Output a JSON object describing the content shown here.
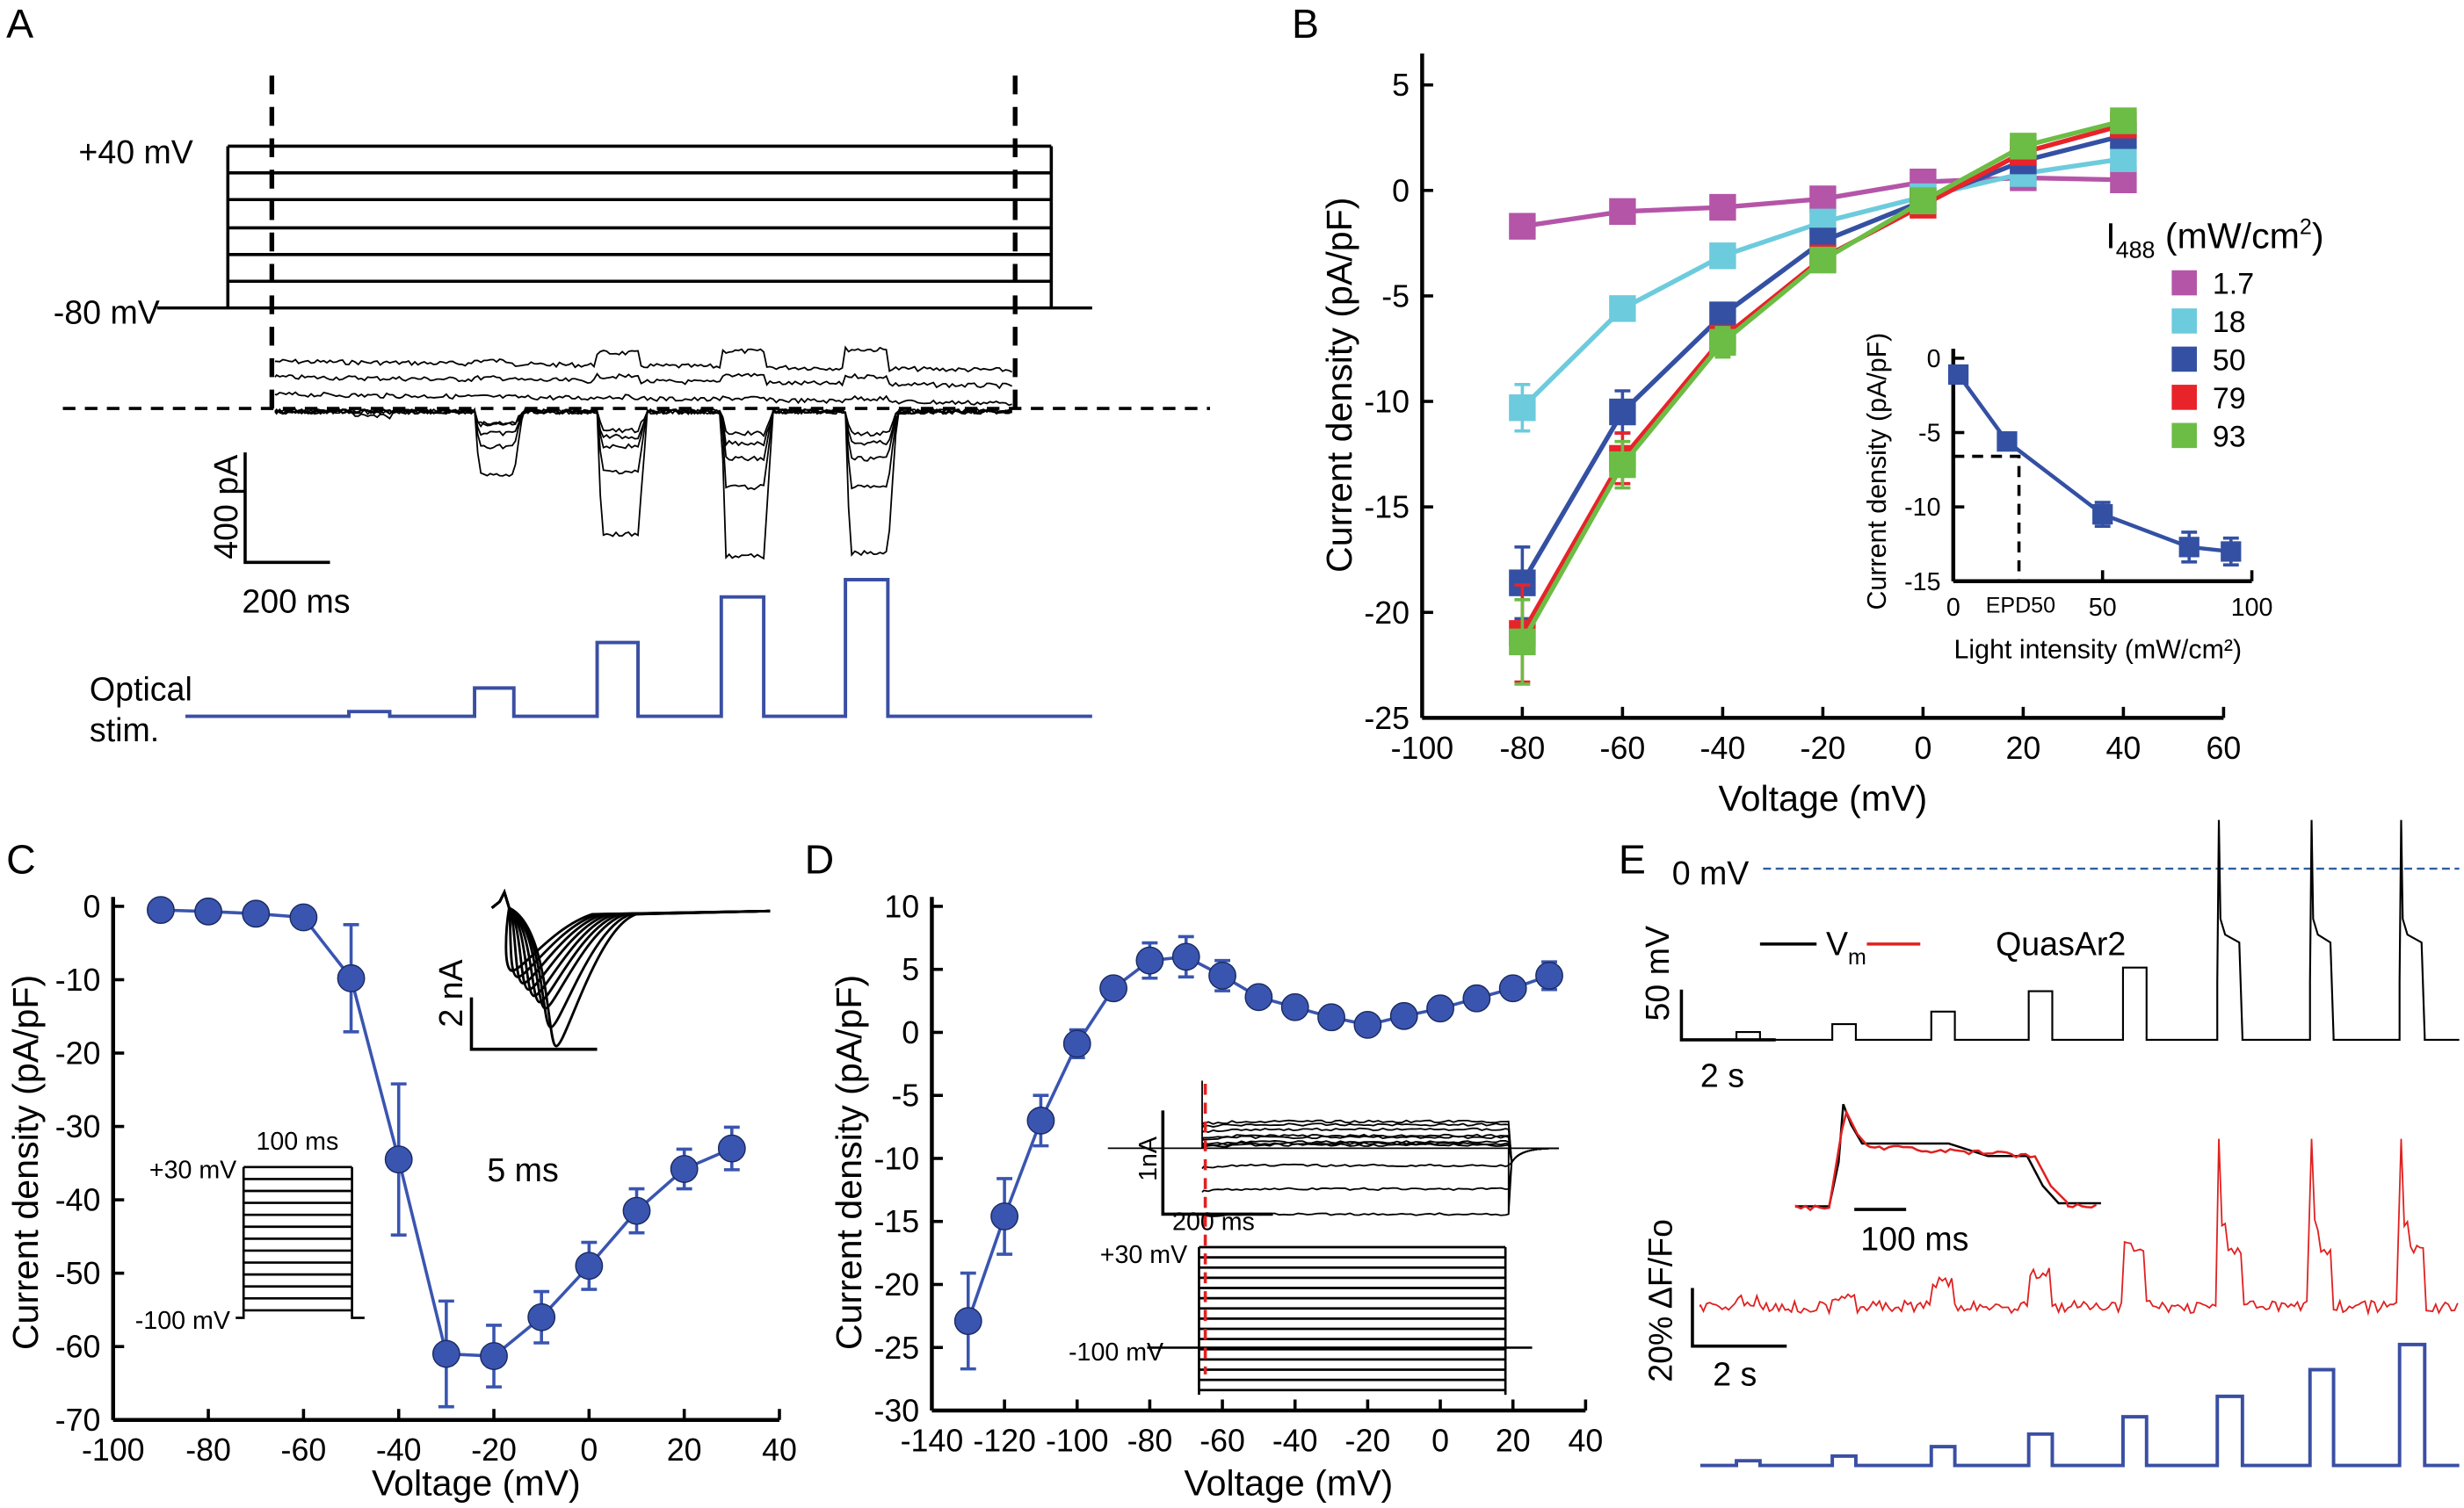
{
  "panel_letters": [
    "A",
    "B",
    "C",
    "D",
    "E"
  ],
  "panel_a": {
    "v_top_label": "+40 mV",
    "v_bottom_label": "-80 mV",
    "scale_y_label": "400 pA",
    "scale_x_label": "200 ms",
    "stim_label_1": "Optical",
    "stim_label_2": "stim.",
    "stim_color": "#3a4fa3"
  },
  "panel_b_legend": {
    "title_main": "I",
    "title_sub": "488",
    "title_rest": " (mW/cm",
    "title_sup": "2",
    "title_end": ")"
  },
  "panel_c_inset": {
    "scale_y_label": "2 nA",
    "scale_x_label": "5 ms",
    "protocol_top": "+30 mV",
    "protocol_bottom": "-100 mV",
    "protocol_duration": "100  ms"
  },
  "panel_d_inset": {
    "scale_y_label": "1nA",
    "scale_x_label": "200 ms",
    "protocol_top": "+30 mV",
    "protocol_bottom": "-100 mV",
    "marker_color": "#e02020"
  },
  "panel_e": {
    "zero_label": "0 mV",
    "legend_vm_main": "V",
    "legend_vm_sub": "m",
    "legend_quasar": "QuasAr2",
    "vm_scale_y": "50 mV",
    "vm_scale_x": "2 s",
    "inset_scale_x": "100 ms",
    "fl_scale_y": "20% ΔF/Fo",
    "fl_scale_x": "2 s",
    "vm_color": "#000000",
    "quasar_color": "#e02020",
    "stim_color": "#3a4fa3",
    "zero_line_color": "#2f5fa0"
  },
  "chart_data": [
    {
      "id": "B",
      "type": "line",
      "xlabel": "Voltage (mV)",
      "ylabel": "Current density (pA/pF)",
      "xlim": [
        -100,
        60
      ],
      "ylim": [
        -25,
        5
      ],
      "xticks": [
        -100,
        -80,
        -60,
        -40,
        -20,
        0,
        20,
        40,
        60
      ],
      "yticks": [
        -25,
        -20,
        -15,
        -10,
        -5,
        0,
        5
      ],
      "grid": false,
      "legend": "right",
      "marker": "square",
      "x": [
        -80,
        -60,
        -40,
        -20,
        0,
        20,
        40
      ],
      "series": [
        {
          "name": "1.7",
          "color": "#b455a8",
          "values": [
            -1.7,
            -1.0,
            -0.8,
            -0.4,
            0.4,
            0.6,
            0.5
          ],
          "errors": [
            0.2,
            0.2,
            0.2,
            0.2,
            0.2,
            0.2,
            0.2
          ]
        },
        {
          "name": "18",
          "color": "#6ccbdc",
          "values": [
            -10.3,
            -5.6,
            -3.1,
            -1.5,
            -0.3,
            0.8,
            1.5
          ],
          "errors": [
            1.1,
            0.3,
            0.3,
            0.3,
            0.2,
            0.2,
            0.3
          ]
        },
        {
          "name": "50",
          "color": "#3450a3",
          "values": [
            -18.6,
            -10.5,
            -5.9,
            -2.4,
            -0.5,
            1.4,
            2.6
          ],
          "errors": [
            1.7,
            1.0,
            0.5,
            0.3,
            0.2,
            0.3,
            0.3
          ]
        },
        {
          "name": "79",
          "color": "#e8232a",
          "values": [
            -21.0,
            -12.7,
            -7.0,
            -3.2,
            -0.7,
            1.8,
            3.1
          ],
          "errors": [
            2.3,
            1.2,
            0.5,
            0.3,
            0.3,
            0.3,
            0.3
          ]
        },
        {
          "name": "93",
          "color": "#6bbd45",
          "values": [
            -21.4,
            -13.0,
            -7.2,
            -3.3,
            -0.5,
            2.1,
            3.3
          ],
          "errors": [
            2.0,
            1.1,
            0.7,
            0.3,
            0.3,
            0.3,
            0.3
          ]
        }
      ]
    },
    {
      "id": "B-inset",
      "type": "line",
      "xlabel": "Light intensity (mW/cm²)",
      "ylabel": "Current density (pA/pF)",
      "xlim": [
        0,
        100
      ],
      "ylim": [
        -15,
        0
      ],
      "xticks": [
        0,
        50,
        100
      ],
      "yticks": [
        -15,
        -10,
        -5,
        0
      ],
      "annotation": {
        "label": "EPD50",
        "x": 22,
        "y": -6.6
      },
      "marker": "square",
      "color": "#3450a3",
      "x": [
        1.7,
        18,
        50,
        79,
        93
      ],
      "values": [
        -1.1,
        -5.6,
        -10.5,
        -12.7,
        -13.0
      ],
      "errors": [
        0.2,
        0.2,
        0.8,
        1.0,
        0.9
      ]
    },
    {
      "id": "C",
      "type": "line",
      "xlabel": "Voltage (mV)",
      "ylabel": "Current density (pA/pF)",
      "xlim": [
        -100,
        40
      ],
      "ylim": [
        -70,
        0
      ],
      "xticks": [
        -100,
        -80,
        -60,
        -40,
        -20,
        0,
        20,
        40
      ],
      "yticks": [
        -70,
        -60,
        -50,
        -40,
        -30,
        -20,
        -10,
        0
      ],
      "marker": "circle",
      "color": "#3a55b0",
      "x": [
        -90,
        -80,
        -70,
        -60,
        -50,
        -40,
        -30,
        -20,
        -10,
        0,
        10,
        20,
        30
      ],
      "values": [
        -0.5,
        -0.7,
        -1.0,
        -1.5,
        -9.8,
        -34.5,
        -61.0,
        -61.3,
        -56.0,
        -49.0,
        -41.5,
        -35.8,
        -33.0
      ],
      "errors": [
        0.3,
        0.3,
        0.3,
        0.4,
        7.3,
        10.3,
        7.2,
        4.2,
        3.5,
        3.2,
        3.0,
        2.7,
        2.9
      ]
    },
    {
      "id": "D",
      "type": "line",
      "xlabel": "Voltage (mV)",
      "ylabel": "Current density (pA/pF)",
      "xlim": [
        -140,
        40
      ],
      "ylim": [
        -30,
        10
      ],
      "xticks": [
        -140,
        -120,
        -100,
        -80,
        -60,
        -40,
        -20,
        0,
        20,
        40
      ],
      "yticks": [
        -30,
        -25,
        -20,
        -15,
        -10,
        -5,
        0,
        5,
        10
      ],
      "marker": "circle",
      "color": "#3a55b0",
      "x": [
        -130,
        -120,
        -110,
        -100,
        -90,
        -80,
        -70,
        -60,
        -50,
        -40,
        -30,
        -20,
        -10,
        0,
        10,
        20,
        30
      ],
      "values": [
        -22.9,
        -14.6,
        -7.0,
        -0.9,
        3.5,
        5.7,
        6.0,
        4.5,
        2.8,
        2.0,
        1.2,
        0.6,
        1.3,
        1.9,
        2.7,
        3.5,
        4.5
      ],
      "errors": [
        3.8,
        3.0,
        2.0,
        1.1,
        0.8,
        1.4,
        1.6,
        1.2,
        0.3,
        0.3,
        0.3,
        0.3,
        0.3,
        0.3,
        0.3,
        0.8,
        1.1
      ]
    }
  ]
}
